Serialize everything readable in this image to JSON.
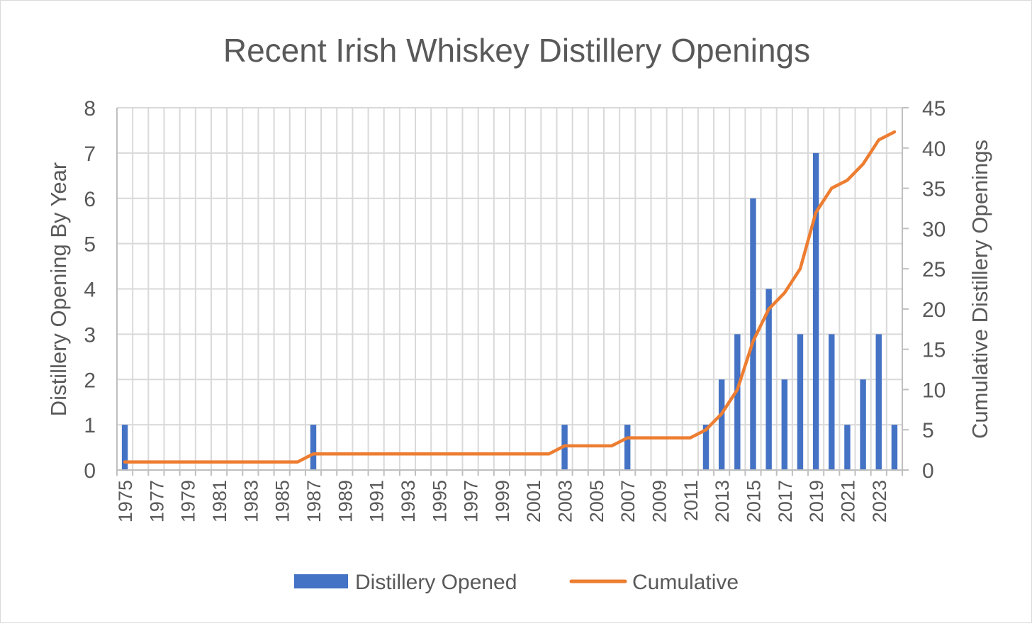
{
  "chart_data": {
    "type": "bar",
    "title": "Recent Irish Whiskey Distillery Openings",
    "xlabel": "",
    "ylabel": "Distillery Opening By Year",
    "y2label": "Cumulative Distillery Openings",
    "ylim": [
      0,
      8
    ],
    "y_ticks": [
      0,
      1,
      2,
      3,
      4,
      5,
      6,
      7,
      8
    ],
    "y2lim": [
      0,
      45
    ],
    "y2_ticks": [
      0,
      5,
      10,
      15,
      20,
      25,
      30,
      35,
      40,
      45
    ],
    "grid": true,
    "legend_position": "bottom",
    "categories": [
      1975,
      1976,
      1977,
      1978,
      1979,
      1980,
      1981,
      1982,
      1983,
      1984,
      1985,
      1986,
      1987,
      1988,
      1989,
      1990,
      1991,
      1992,
      1993,
      1994,
      1995,
      1996,
      1997,
      1998,
      1999,
      2000,
      2001,
      2002,
      2003,
      2004,
      2005,
      2006,
      2007,
      2008,
      2009,
      2010,
      2011,
      2012,
      2013,
      2014,
      2015,
      2016,
      2017,
      2018,
      2019,
      2020,
      2021,
      2022,
      2023,
      2024
    ],
    "x_tick_labels": [
      "1975",
      "1977",
      "1979",
      "1981",
      "1983",
      "1985",
      "1987",
      "1989",
      "1991",
      "1993",
      "1995",
      "1997",
      "1999",
      "2001",
      "2003",
      "2005",
      "2007",
      "2009",
      "2011",
      "2013",
      "2015",
      "2017",
      "2019",
      "2021",
      "2023"
    ],
    "series": [
      {
        "name": "Distillery Opened",
        "type": "bar",
        "axis": "left",
        "color": "#4472c4",
        "values": [
          1,
          0,
          0,
          0,
          0,
          0,
          0,
          0,
          0,
          0,
          0,
          0,
          1,
          0,
          0,
          0,
          0,
          0,
          0,
          0,
          0,
          0,
          0,
          0,
          0,
          0,
          0,
          0,
          1,
          0,
          0,
          0,
          1,
          0,
          0,
          0,
          0,
          1,
          2,
          3,
          6,
          4,
          2,
          3,
          7,
          3,
          1,
          2,
          3,
          1
        ]
      },
      {
        "name": "Cumulative",
        "type": "line",
        "axis": "right",
        "color": "#ed7d31",
        "values": [
          1,
          1,
          1,
          1,
          1,
          1,
          1,
          1,
          1,
          1,
          1,
          1,
          2,
          2,
          2,
          2,
          2,
          2,
          2,
          2,
          2,
          2,
          2,
          2,
          2,
          2,
          2,
          2,
          3,
          3,
          3,
          3,
          4,
          4,
          4,
          4,
          4,
          5,
          7,
          10,
          16,
          20,
          22,
          25,
          32,
          35,
          36,
          38,
          41,
          42
        ]
      }
    ]
  }
}
